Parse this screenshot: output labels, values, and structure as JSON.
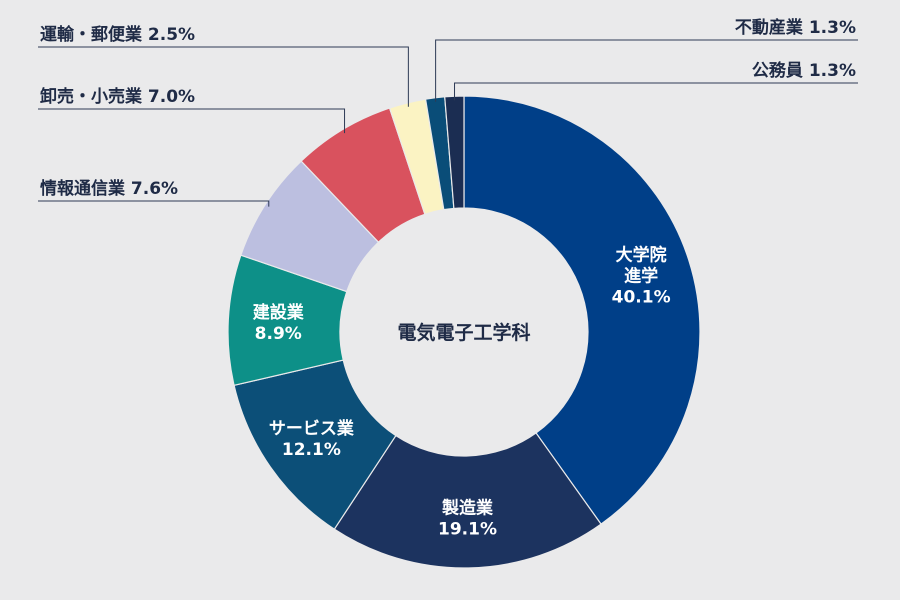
{
  "chart_data": {
    "type": "pie",
    "donut": true,
    "center_label": "電気電子工学科",
    "start_angle_deg": 0,
    "direction": "clockwise",
    "slices": [
      {
        "name": "大学院進学",
        "value": 40.1,
        "text_lines": [
          "大学院",
          "進学",
          "40.1%"
        ],
        "label": "inside",
        "color": "#003f88"
      },
      {
        "name": "製造業",
        "value": 19.1,
        "text_lines": [
          "製造業",
          "19.1%"
        ],
        "label": "inside",
        "color": "#1c335f"
      },
      {
        "name": "サービス業",
        "value": 12.1,
        "text_lines": [
          "サービス業",
          "12.1%"
        ],
        "label": "inside",
        "color": "#0c4f78"
      },
      {
        "name": "建設業",
        "value": 8.9,
        "text_lines": [
          "建設業",
          "8.9%"
        ],
        "label": "inside",
        "color": "#0d9088"
      },
      {
        "name": "情報通信業",
        "value": 7.6,
        "text": "情報通信業 7.6%",
        "label": "outside-left",
        "color": "#bcbfe0"
      },
      {
        "name": "卸売・小売業",
        "value": 7.0,
        "text": "卸売・小売業 7.0%",
        "label": "outside-left",
        "color": "#d9525e"
      },
      {
        "name": "運輸・郵便業",
        "value": 2.5,
        "text": "運輸・郵便業 2.5%",
        "label": "outside-left",
        "color": "#fbf3c3"
      },
      {
        "name": "不動産業",
        "value": 1.3,
        "text": "不動産業 1.3%",
        "label": "outside-right",
        "color": "#0a4d78"
      },
      {
        "name": "公務員",
        "value": 1.3,
        "text": "公務員 1.3%",
        "label": "outside-right",
        "color": "#1b2d52"
      }
    ]
  }
}
